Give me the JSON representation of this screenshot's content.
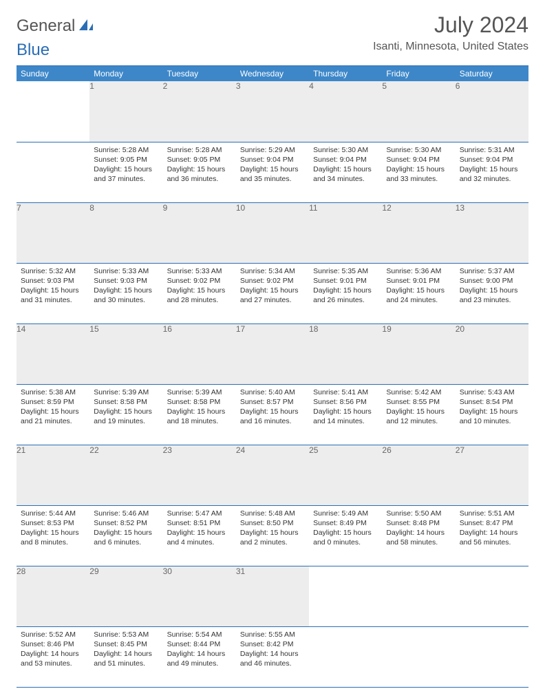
{
  "header": {
    "logo_general": "General",
    "logo_blue": "Blue",
    "month_title": "July 2024",
    "location": "Isanti, Minnesota, United States"
  },
  "weekdays": [
    "Sunday",
    "Monday",
    "Tuesday",
    "Wednesday",
    "Thursday",
    "Friday",
    "Saturday"
  ],
  "colors": {
    "header_bg": "#3d87c9",
    "rule": "#2a6db4",
    "daynum_bg": "#ededed"
  },
  "weeks": [
    {
      "nums": [
        "",
        "1",
        "2",
        "3",
        "4",
        "5",
        "6"
      ],
      "cells": [
        {
          "empty": true
        },
        {
          "sunrise": "Sunrise: 5:28 AM",
          "sunset": "Sunset: 9:05 PM",
          "daylight": "Daylight: 15 hours and 37 minutes."
        },
        {
          "sunrise": "Sunrise: 5:28 AM",
          "sunset": "Sunset: 9:05 PM",
          "daylight": "Daylight: 15 hours and 36 minutes."
        },
        {
          "sunrise": "Sunrise: 5:29 AM",
          "sunset": "Sunset: 9:04 PM",
          "daylight": "Daylight: 15 hours and 35 minutes."
        },
        {
          "sunrise": "Sunrise: 5:30 AM",
          "sunset": "Sunset: 9:04 PM",
          "daylight": "Daylight: 15 hours and 34 minutes."
        },
        {
          "sunrise": "Sunrise: 5:30 AM",
          "sunset": "Sunset: 9:04 PM",
          "daylight": "Daylight: 15 hours and 33 minutes."
        },
        {
          "sunrise": "Sunrise: 5:31 AM",
          "sunset": "Sunset: 9:04 PM",
          "daylight": "Daylight: 15 hours and 32 minutes."
        }
      ]
    },
    {
      "nums": [
        "7",
        "8",
        "9",
        "10",
        "11",
        "12",
        "13"
      ],
      "cells": [
        {
          "sunrise": "Sunrise: 5:32 AM",
          "sunset": "Sunset: 9:03 PM",
          "daylight": "Daylight: 15 hours and 31 minutes."
        },
        {
          "sunrise": "Sunrise: 5:33 AM",
          "sunset": "Sunset: 9:03 PM",
          "daylight": "Daylight: 15 hours and 30 minutes."
        },
        {
          "sunrise": "Sunrise: 5:33 AM",
          "sunset": "Sunset: 9:02 PM",
          "daylight": "Daylight: 15 hours and 28 minutes."
        },
        {
          "sunrise": "Sunrise: 5:34 AM",
          "sunset": "Sunset: 9:02 PM",
          "daylight": "Daylight: 15 hours and 27 minutes."
        },
        {
          "sunrise": "Sunrise: 5:35 AM",
          "sunset": "Sunset: 9:01 PM",
          "daylight": "Daylight: 15 hours and 26 minutes."
        },
        {
          "sunrise": "Sunrise: 5:36 AM",
          "sunset": "Sunset: 9:01 PM",
          "daylight": "Daylight: 15 hours and 24 minutes."
        },
        {
          "sunrise": "Sunrise: 5:37 AM",
          "sunset": "Sunset: 9:00 PM",
          "daylight": "Daylight: 15 hours and 23 minutes."
        }
      ]
    },
    {
      "nums": [
        "14",
        "15",
        "16",
        "17",
        "18",
        "19",
        "20"
      ],
      "cells": [
        {
          "sunrise": "Sunrise: 5:38 AM",
          "sunset": "Sunset: 8:59 PM",
          "daylight": "Daylight: 15 hours and 21 minutes."
        },
        {
          "sunrise": "Sunrise: 5:39 AM",
          "sunset": "Sunset: 8:58 PM",
          "daylight": "Daylight: 15 hours and 19 minutes."
        },
        {
          "sunrise": "Sunrise: 5:39 AM",
          "sunset": "Sunset: 8:58 PM",
          "daylight": "Daylight: 15 hours and 18 minutes."
        },
        {
          "sunrise": "Sunrise: 5:40 AM",
          "sunset": "Sunset: 8:57 PM",
          "daylight": "Daylight: 15 hours and 16 minutes."
        },
        {
          "sunrise": "Sunrise: 5:41 AM",
          "sunset": "Sunset: 8:56 PM",
          "daylight": "Daylight: 15 hours and 14 minutes."
        },
        {
          "sunrise": "Sunrise: 5:42 AM",
          "sunset": "Sunset: 8:55 PM",
          "daylight": "Daylight: 15 hours and 12 minutes."
        },
        {
          "sunrise": "Sunrise: 5:43 AM",
          "sunset": "Sunset: 8:54 PM",
          "daylight": "Daylight: 15 hours and 10 minutes."
        }
      ]
    },
    {
      "nums": [
        "21",
        "22",
        "23",
        "24",
        "25",
        "26",
        "27"
      ],
      "cells": [
        {
          "sunrise": "Sunrise: 5:44 AM",
          "sunset": "Sunset: 8:53 PM",
          "daylight": "Daylight: 15 hours and 8 minutes."
        },
        {
          "sunrise": "Sunrise: 5:46 AM",
          "sunset": "Sunset: 8:52 PM",
          "daylight": "Daylight: 15 hours and 6 minutes."
        },
        {
          "sunrise": "Sunrise: 5:47 AM",
          "sunset": "Sunset: 8:51 PM",
          "daylight": "Daylight: 15 hours and 4 minutes."
        },
        {
          "sunrise": "Sunrise: 5:48 AM",
          "sunset": "Sunset: 8:50 PM",
          "daylight": "Daylight: 15 hours and 2 minutes."
        },
        {
          "sunrise": "Sunrise: 5:49 AM",
          "sunset": "Sunset: 8:49 PM",
          "daylight": "Daylight: 15 hours and 0 minutes."
        },
        {
          "sunrise": "Sunrise: 5:50 AM",
          "sunset": "Sunset: 8:48 PM",
          "daylight": "Daylight: 14 hours and 58 minutes."
        },
        {
          "sunrise": "Sunrise: 5:51 AM",
          "sunset": "Sunset: 8:47 PM",
          "daylight": "Daylight: 14 hours and 56 minutes."
        }
      ]
    },
    {
      "nums": [
        "28",
        "29",
        "30",
        "31",
        "",
        "",
        ""
      ],
      "cells": [
        {
          "sunrise": "Sunrise: 5:52 AM",
          "sunset": "Sunset: 8:46 PM",
          "daylight": "Daylight: 14 hours and 53 minutes."
        },
        {
          "sunrise": "Sunrise: 5:53 AM",
          "sunset": "Sunset: 8:45 PM",
          "daylight": "Daylight: 14 hours and 51 minutes."
        },
        {
          "sunrise": "Sunrise: 5:54 AM",
          "sunset": "Sunset: 8:44 PM",
          "daylight": "Daylight: 14 hours and 49 minutes."
        },
        {
          "sunrise": "Sunrise: 5:55 AM",
          "sunset": "Sunset: 8:42 PM",
          "daylight": "Daylight: 14 hours and 46 minutes."
        },
        {
          "empty": true
        },
        {
          "empty": true
        },
        {
          "empty": true
        }
      ]
    }
  ]
}
